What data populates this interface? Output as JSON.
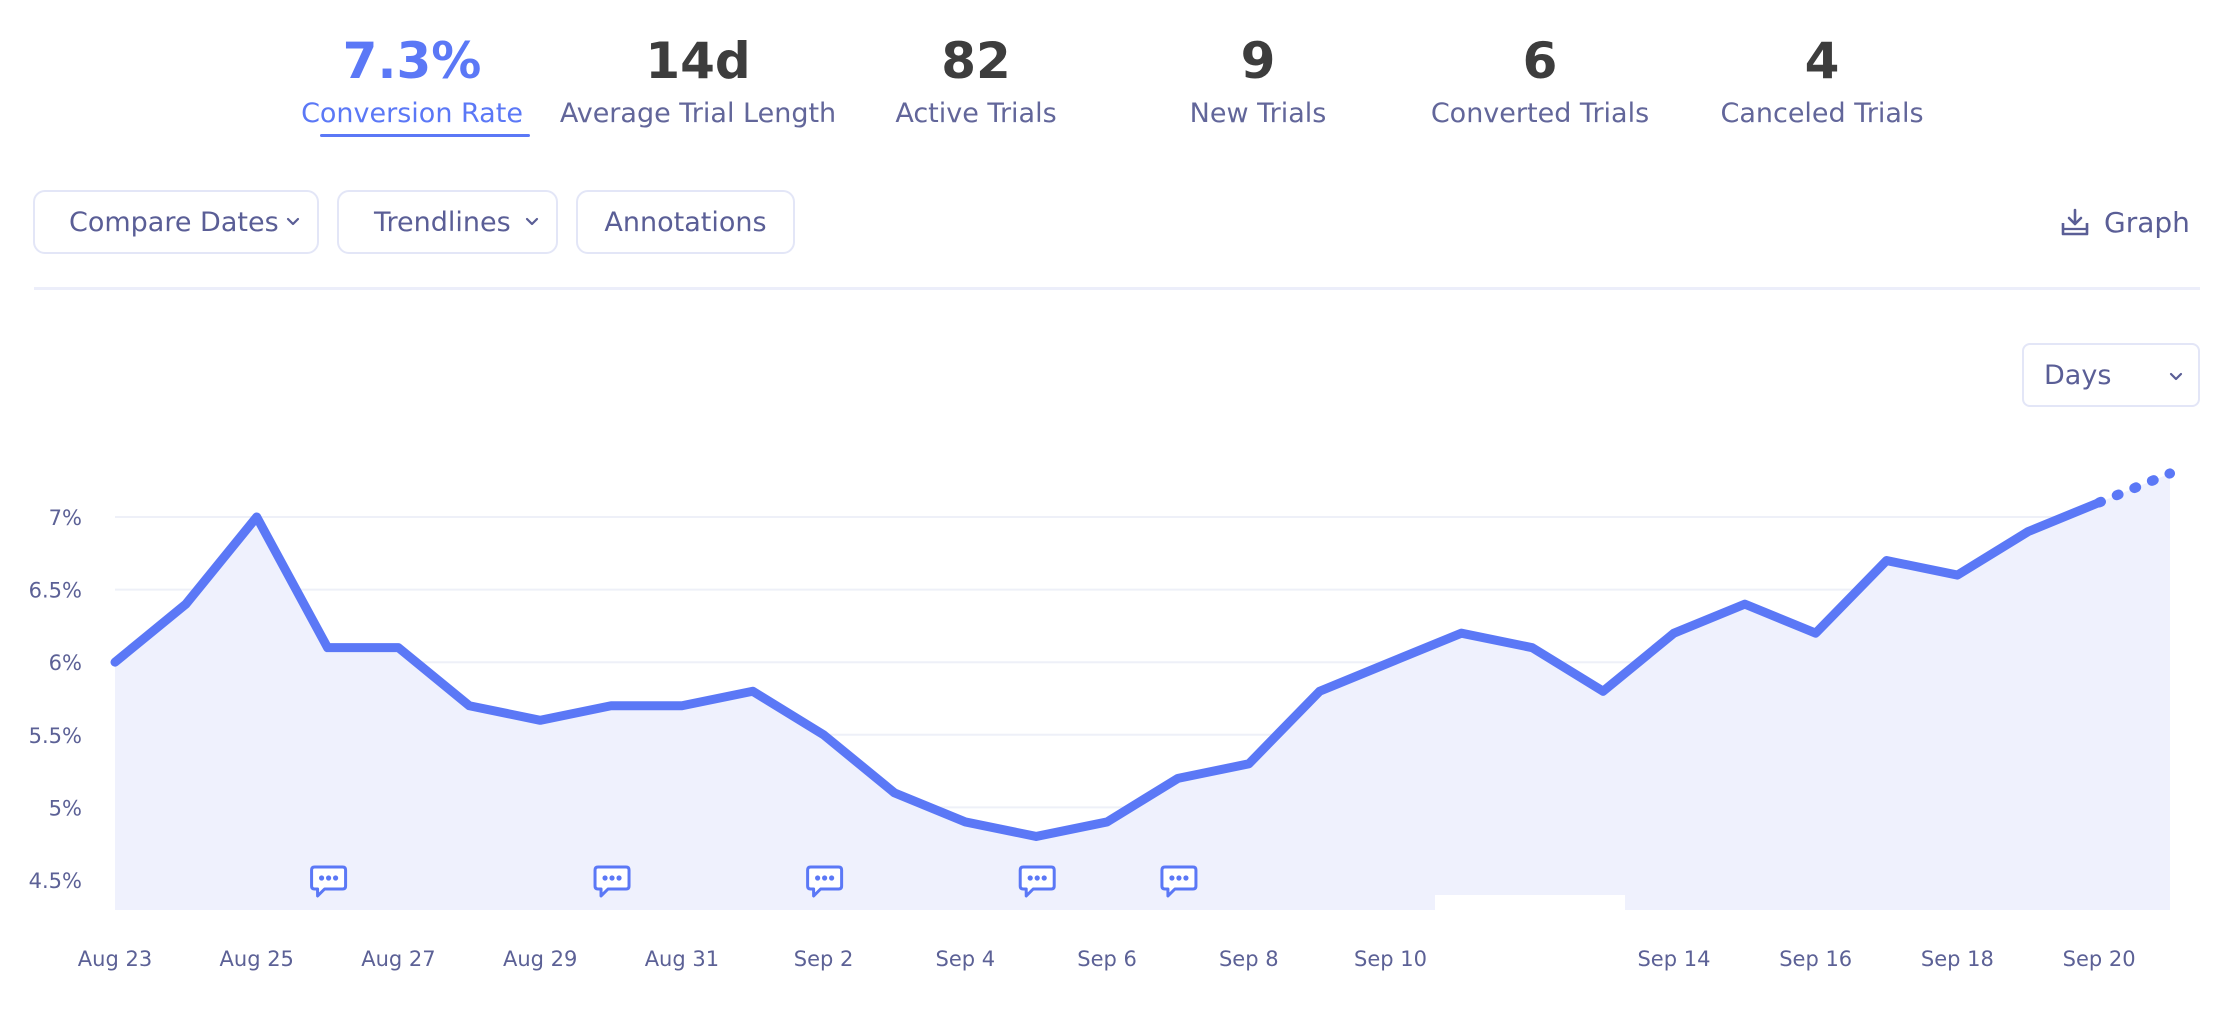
{
  "metrics": [
    {
      "value": "7.3%",
      "label": "Conversion Rate"
    },
    {
      "value": "14d",
      "label": "Average Trial Length"
    },
    {
      "value": "82",
      "label": "Active Trials"
    },
    {
      "value": "9",
      "label": "New Trials"
    },
    {
      "value": "6",
      "label": "Converted Trials"
    },
    {
      "value": "4",
      "label": "Canceled Trials"
    }
  ],
  "toolbar": {
    "compare_label": "Compare Dates",
    "trendlines_label": "Trendlines",
    "annotations_label": "Annotations",
    "graph_label": "Graph",
    "download_icon": "download-icon"
  },
  "interval": {
    "selected": "Days"
  },
  "colors": {
    "accent": "#5b78f6",
    "fill": "#eff1fd",
    "axis_text": "#5c6196",
    "grid": "#eef0f8"
  },
  "chart_data": {
    "type": "area",
    "title": "",
    "xlabel": "",
    "ylabel": "",
    "ylim": [
      4.3,
      7.4
    ],
    "y_ticks": [
      4.5,
      5,
      5.5,
      6,
      6.5,
      7
    ],
    "y_tick_labels": [
      "4.5%",
      "5%",
      "5.5%",
      "6%",
      "6.5%",
      "7%"
    ],
    "x_tick_labels": [
      "Aug 23",
      "Aug 25",
      "Aug 27",
      "Aug 29",
      "Aug 31",
      "Sep 2",
      "Sep 4",
      "Sep 6",
      "Sep 8",
      "Sep 10",
      "Sep 14",
      "Sep 16",
      "Sep 18",
      "Sep 20"
    ],
    "x_tick_index": [
      0,
      2,
      4,
      6,
      8,
      10,
      12,
      14,
      16,
      18,
      22,
      24,
      26,
      28
    ],
    "series": [
      {
        "name": "Conversion Rate",
        "values": [
          6.0,
          6.4,
          7.0,
          6.1,
          6.1,
          5.7,
          5.6,
          5.7,
          5.7,
          5.8,
          5.5,
          5.1,
          4.9,
          4.8,
          4.9,
          5.2,
          5.3,
          5.8,
          6.0,
          6.2,
          6.1,
          5.8,
          6.2,
          6.4,
          6.2,
          6.7,
          6.6,
          6.9,
          7.1,
          7.3
        ],
        "projected_from_index": 28
      }
    ],
    "annotations_at_index": [
      3,
      7,
      10,
      13,
      15
    ]
  }
}
